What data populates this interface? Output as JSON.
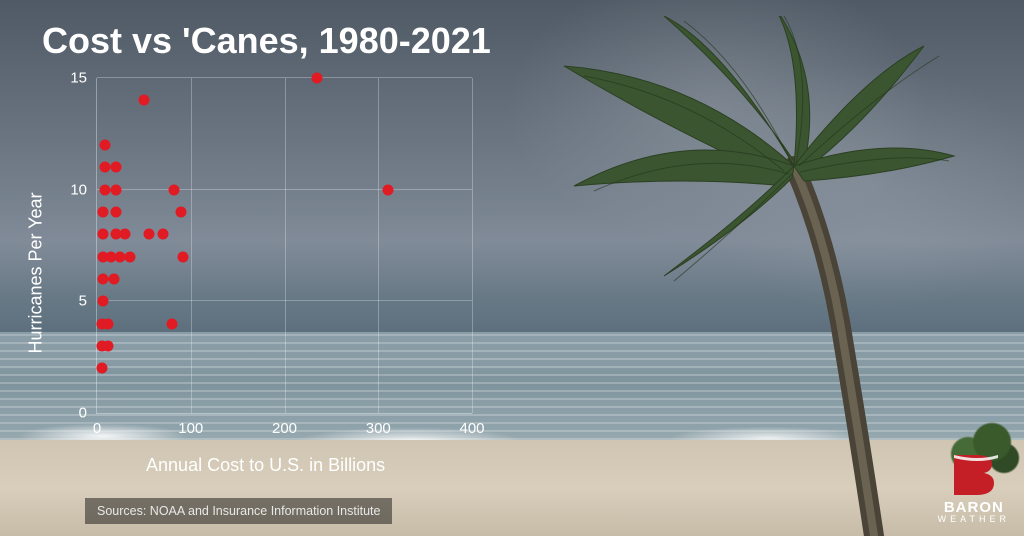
{
  "title": "Cost vs 'Canes, 1980-2021",
  "brand": {
    "name": "BARON",
    "sub": "WEATHER",
    "color": "#c41e26"
  },
  "sources_label": "Sources: NOAA and Insurance Information Institute",
  "chart": {
    "type": "scatter",
    "xlabel": "Annual Cost to U.S. in Billions",
    "ylabel": "Hurricanes Per Year",
    "xlim": [
      0,
      400
    ],
    "ylim": [
      0,
      15
    ],
    "xtick_step": 100,
    "ytick_step": 5,
    "xticks": [
      0,
      100,
      200,
      300,
      400
    ],
    "yticks": [
      0,
      5,
      10,
      15
    ],
    "point_color": "#e01b24",
    "point_radius": 5.5,
    "grid_color": "rgba(255,255,255,0.28)",
    "axis_color": "rgba(255,255,255,0.35)",
    "text_color": "#ffffff",
    "label_fontsize": 18,
    "tick_fontsize": 15,
    "title_fontsize": 36,
    "background": "transparent",
    "points": [
      {
        "x": 5,
        "y": 2
      },
      {
        "x": 5,
        "y": 3
      },
      {
        "x": 12,
        "y": 3
      },
      {
        "x": 5,
        "y": 4
      },
      {
        "x": 12,
        "y": 4
      },
      {
        "x": 80,
        "y": 4
      },
      {
        "x": 6,
        "y": 5
      },
      {
        "x": 6,
        "y": 6
      },
      {
        "x": 18,
        "y": 6
      },
      {
        "x": 6,
        "y": 7
      },
      {
        "x": 15,
        "y": 7
      },
      {
        "x": 25,
        "y": 7
      },
      {
        "x": 35,
        "y": 7
      },
      {
        "x": 92,
        "y": 7
      },
      {
        "x": 6,
        "y": 8
      },
      {
        "x": 20,
        "y": 8
      },
      {
        "x": 30,
        "y": 8
      },
      {
        "x": 55,
        "y": 8
      },
      {
        "x": 70,
        "y": 8
      },
      {
        "x": 6,
        "y": 9
      },
      {
        "x": 20,
        "y": 9
      },
      {
        "x": 90,
        "y": 9
      },
      {
        "x": 8,
        "y": 10
      },
      {
        "x": 20,
        "y": 10
      },
      {
        "x": 82,
        "y": 10
      },
      {
        "x": 310,
        "y": 10
      },
      {
        "x": 8,
        "y": 11
      },
      {
        "x": 20,
        "y": 11
      },
      {
        "x": 8,
        "y": 12
      },
      {
        "x": 50,
        "y": 14
      },
      {
        "x": 235,
        "y": 15
      }
    ]
  }
}
